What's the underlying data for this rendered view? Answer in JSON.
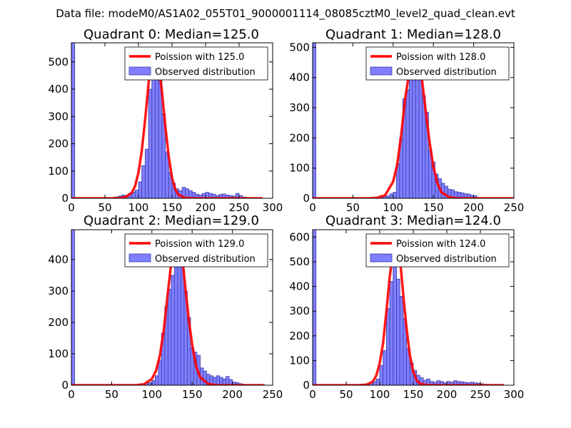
{
  "figure": {
    "suptitle": "Data file: modeM0/AS1A02_055T01_9000001114_08085cztM0_level2_quad_clean.evt",
    "colors": {
      "hist_fill": "#7f7fff",
      "hist_edge": "#3a3aa8",
      "poisson_line": "#ff0000"
    }
  },
  "chart_data": [
    {
      "type": "bar",
      "title": "Quadrant 0: Median=125.0",
      "xlim": [
        0,
        300
      ],
      "ylim": [
        0,
        570
      ],
      "xticks": [
        "0",
        "50",
        "100",
        "150",
        "200",
        "250",
        "300"
      ],
      "yticks": [
        "0",
        "100",
        "200",
        "300",
        "400",
        "500"
      ],
      "legend": {
        "placement": "top-right",
        "line_label": "Poission with 125.0",
        "hist_label": "Observed distribution"
      },
      "bin_width": 5,
      "bars": [
        [
          0,
          570
        ],
        [
          60,
          3
        ],
        [
          65,
          5
        ],
        [
          70,
          8
        ],
        [
          75,
          12
        ],
        [
          80,
          10
        ],
        [
          85,
          18
        ],
        [
          90,
          22
        ],
        [
          95,
          30
        ],
        [
          100,
          60
        ],
        [
          105,
          120
        ],
        [
          110,
          180
        ],
        [
          115,
          400
        ],
        [
          120,
          470
        ],
        [
          125,
          500
        ],
        [
          130,
          450
        ],
        [
          135,
          310
        ],
        [
          140,
          170
        ],
        [
          145,
          95
        ],
        [
          150,
          55
        ],
        [
          155,
          35
        ],
        [
          160,
          28
        ],
        [
          165,
          40
        ],
        [
          170,
          35
        ],
        [
          175,
          28
        ],
        [
          180,
          22
        ],
        [
          185,
          15
        ],
        [
          190,
          12
        ],
        [
          195,
          18
        ],
        [
          200,
          22
        ],
        [
          205,
          18
        ],
        [
          210,
          15
        ],
        [
          215,
          10
        ],
        [
          220,
          14
        ],
        [
          225,
          16
        ],
        [
          230,
          12
        ],
        [
          235,
          10
        ],
        [
          240,
          8
        ],
        [
          245,
          18
        ],
        [
          250,
          10
        ],
        [
          255,
          5
        ],
        [
          260,
          3
        ]
      ],
      "curve_x": [
        0,
        60,
        70,
        80,
        90,
        95,
        100,
        105,
        110,
        115,
        120,
        122,
        125,
        128,
        130,
        135,
        140,
        145,
        150,
        155,
        160,
        170,
        180,
        200,
        285
      ],
      "curve_y": [
        0,
        0,
        1,
        4,
        20,
        45,
        95,
        175,
        290,
        420,
        520,
        545,
        548,
        530,
        500,
        390,
        265,
        155,
        75,
        32,
        12,
        2,
        0,
        0,
        0
      ]
    },
    {
      "type": "bar",
      "title": "Quadrant 1: Median=128.0",
      "xlim": [
        0,
        250
      ],
      "ylim": [
        0,
        515
      ],
      "xticks": [
        "0",
        "50",
        "100",
        "150",
        "200",
        "250"
      ],
      "yticks": [
        "0",
        "100",
        "200",
        "300",
        "400",
        "500"
      ],
      "legend": {
        "placement": "top-right",
        "line_label": "Poission with 128.0",
        "hist_label": "Observed distribution"
      },
      "bin_width": 4,
      "bars": [
        [
          0,
          515
        ],
        [
          76,
          3
        ],
        [
          84,
          5
        ],
        [
          88,
          6
        ],
        [
          92,
          8
        ],
        [
          96,
          15
        ],
        [
          100,
          20
        ],
        [
          104,
          115
        ],
        [
          108,
          200
        ],
        [
          112,
          330
        ],
        [
          116,
          360
        ],
        [
          120,
          405
        ],
        [
          124,
          450
        ],
        [
          128,
          470
        ],
        [
          132,
          400
        ],
        [
          136,
          340
        ],
        [
          140,
          285
        ],
        [
          144,
          160
        ],
        [
          148,
          120
        ],
        [
          152,
          80
        ],
        [
          156,
          65
        ],
        [
          160,
          50
        ],
        [
          164,
          40
        ],
        [
          168,
          30
        ],
        [
          172,
          28
        ],
        [
          176,
          22
        ],
        [
          180,
          20
        ],
        [
          184,
          18
        ],
        [
          188,
          15
        ],
        [
          192,
          14
        ],
        [
          196,
          10
        ],
        [
          200,
          8
        ]
      ],
      "curve_x": [
        0,
        70,
        80,
        90,
        100,
        105,
        110,
        115,
        120,
        124,
        128,
        132,
        136,
        140,
        145,
        150,
        155,
        160,
        170,
        180,
        250
      ],
      "curve_y": [
        0,
        0,
        2,
        10,
        55,
        110,
        210,
        330,
        420,
        470,
        480,
        455,
        390,
        300,
        190,
        105,
        50,
        20,
        3,
        0,
        0
      ]
    },
    {
      "type": "bar",
      "title": "Quadrant 2: Median=129.0",
      "xlim": [
        0,
        250
      ],
      "ylim": [
        0,
        495
      ],
      "xticks": [
        "0",
        "50",
        "100",
        "150",
        "200",
        "250"
      ],
      "yticks": [
        "0",
        "100",
        "200",
        "300",
        "400"
      ],
      "legend": {
        "placement": "top-right",
        "line_label": "Poission with 129.0",
        "hist_label": "Observed distribution"
      },
      "bin_width": 4,
      "bars": [
        [
          0,
          495
        ],
        [
          84,
          3
        ],
        [
          92,
          5
        ],
        [
          96,
          8
        ],
        [
          100,
          15
        ],
        [
          104,
          30
        ],
        [
          108,
          80
        ],
        [
          112,
          165
        ],
        [
          116,
          250
        ],
        [
          120,
          305
        ],
        [
          124,
          350
        ],
        [
          128,
          480
        ],
        [
          132,
          480
        ],
        [
          136,
          400
        ],
        [
          140,
          300
        ],
        [
          144,
          215
        ],
        [
          148,
          120
        ],
        [
          152,
          105
        ],
        [
          156,
          95
        ],
        [
          160,
          55
        ],
        [
          164,
          45
        ],
        [
          168,
          35
        ],
        [
          172,
          30
        ],
        [
          176,
          25
        ],
        [
          180,
          30
        ],
        [
          184,
          25
        ],
        [
          188,
          20
        ],
        [
          192,
          28
        ],
        [
          196,
          18
        ],
        [
          200,
          10
        ],
        [
          204,
          8
        ],
        [
          208,
          5
        ],
        [
          212,
          3
        ]
      ],
      "curve_x": [
        0,
        80,
        90,
        100,
        105,
        110,
        115,
        120,
        125,
        129,
        133,
        138,
        142,
        146,
        150,
        155,
        160,
        170,
        180,
        240
      ],
      "curve_y": [
        0,
        0,
        3,
        20,
        45,
        95,
        180,
        300,
        410,
        470,
        470,
        400,
        300,
        205,
        130,
        60,
        25,
        4,
        0,
        0
      ]
    },
    {
      "type": "bar",
      "title": "Quadrant 3: Median=124.0",
      "xlim": [
        0,
        300
      ],
      "ylim": [
        0,
        630
      ],
      "xticks": [
        "0",
        "50",
        "100",
        "150",
        "200",
        "250",
        "300"
      ],
      "yticks": [
        "0",
        "100",
        "200",
        "300",
        "400",
        "500",
        "600"
      ],
      "legend": {
        "placement": "top-right",
        "line_label": "Poission with 124.0",
        "hist_label": "Observed distribution"
      },
      "bin_width": 5,
      "bars": [
        [
          0,
          630
        ],
        [
          60,
          3
        ],
        [
          70,
          4
        ],
        [
          80,
          5
        ],
        [
          85,
          8
        ],
        [
          90,
          15
        ],
        [
          95,
          25
        ],
        [
          100,
          80
        ],
        [
          105,
          140
        ],
        [
          110,
          310
        ],
        [
          115,
          420
        ],
        [
          120,
          590
        ],
        [
          125,
          430
        ],
        [
          130,
          360
        ],
        [
          135,
          270
        ],
        [
          140,
          150
        ],
        [
          145,
          90
        ],
        [
          150,
          60
        ],
        [
          155,
          40
        ],
        [
          160,
          30
        ],
        [
          165,
          20
        ],
        [
          170,
          25
        ],
        [
          175,
          15
        ],
        [
          180,
          12
        ],
        [
          185,
          18
        ],
        [
          190,
          15
        ],
        [
          195,
          10
        ],
        [
          200,
          15
        ],
        [
          205,
          12
        ],
        [
          210,
          18
        ],
        [
          215,
          15
        ],
        [
          220,
          14
        ],
        [
          225,
          12
        ],
        [
          230,
          10
        ],
        [
          235,
          12
        ],
        [
          240,
          10
        ],
        [
          245,
          8
        ],
        [
          250,
          6
        ],
        [
          255,
          4
        ]
      ],
      "curve_x": [
        0,
        70,
        80,
        90,
        95,
        100,
        105,
        110,
        115,
        120,
        124,
        128,
        132,
        136,
        140,
        145,
        150,
        155,
        160,
        170,
        180,
        285
      ],
      "curve_y": [
        0,
        0,
        2,
        15,
        40,
        90,
        170,
        300,
        440,
        550,
        600,
        560,
        460,
        340,
        230,
        120,
        55,
        20,
        6,
        1,
        0,
        0
      ]
    }
  ]
}
